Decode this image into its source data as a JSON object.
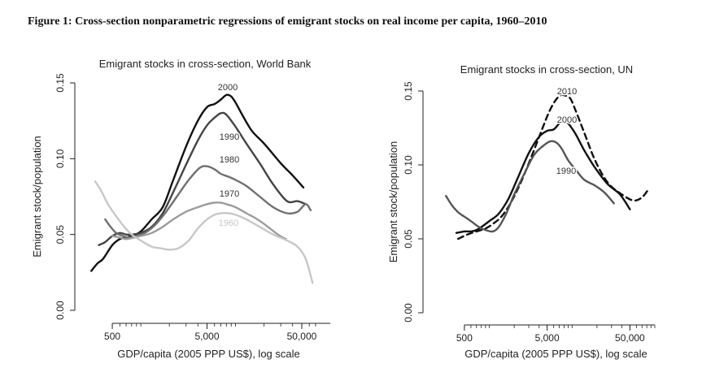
{
  "figure_title": "Figure 1: Cross-section nonparametric regressions of emigrant stocks on real income per capita, 1960–2010",
  "chart_data": [
    {
      "type": "line",
      "title": "Emigrant stocks in cross-section, World Bank",
      "xlabel": "GDP/capita (2005 PPP US$), log scale",
      "ylabel": "Emigrant stock/population",
      "x_scale": "log",
      "xlim": [
        260,
        70000
      ],
      "ylim": [
        0,
        0.15
      ],
      "x_ticks": [
        500,
        5000,
        50000
      ],
      "x_tick_labels": [
        "500",
        "5,000",
        "50,000"
      ],
      "y_ticks": [
        0,
        0.05,
        0.1,
        0.15
      ],
      "y_tick_labels": [
        "0.00",
        "0.05",
        "0.10",
        "0.15"
      ],
      "series": [
        {
          "name": "2000",
          "color": "#111111",
          "dash": "solid",
          "x": [
            300,
            350,
            400,
            500,
            600,
            700,
            800,
            1000,
            1300,
            1700,
            2200,
            3000,
            4000,
            5000,
            6000,
            7000,
            8000,
            9000,
            10000,
            12000,
            15000,
            20000,
            30000,
            40000,
            52000
          ],
          "y": [
            0.026,
            0.031,
            0.034,
            0.043,
            0.047,
            0.048,
            0.049,
            0.052,
            0.06,
            0.068,
            0.086,
            0.108,
            0.125,
            0.134,
            0.136,
            0.139,
            0.142,
            0.141,
            0.137,
            0.128,
            0.118,
            0.11,
            0.097,
            0.089,
            0.081
          ]
        },
        {
          "name": "1990",
          "color": "#444444",
          "dash": "solid",
          "x": [
            360,
            420,
            500,
            600,
            700,
            800,
            1000,
            1300,
            1700,
            2200,
            3000,
            4000,
            5000,
            6000,
            7000,
            8000,
            10000,
            13000,
            18000,
            25000,
            35000,
            45000,
            55000
          ],
          "y": [
            0.043,
            0.045,
            0.049,
            0.051,
            0.05,
            0.05,
            0.051,
            0.055,
            0.064,
            0.078,
            0.096,
            0.112,
            0.122,
            0.127,
            0.13,
            0.129,
            0.121,
            0.11,
            0.097,
            0.083,
            0.072,
            0.072,
            0.07
          ]
        },
        {
          "name": "1980",
          "color": "#707070",
          "dash": "solid",
          "x": [
            420,
            480,
            550,
            650,
            750,
            900,
            1100,
            1400,
            1800,
            2400,
            3200,
            4200,
            5000,
            6000,
            7000,
            8500,
            10000,
            13000,
            18000,
            25000,
            35000,
            45000,
            55000,
            62000
          ],
          "y": [
            0.06,
            0.055,
            0.051,
            0.049,
            0.048,
            0.049,
            0.051,
            0.056,
            0.064,
            0.075,
            0.086,
            0.094,
            0.095,
            0.093,
            0.09,
            0.088,
            0.086,
            0.082,
            0.075,
            0.068,
            0.064,
            0.065,
            0.07,
            0.066
          ]
        },
        {
          "name": "1970",
          "color": "#9c9c9c",
          "dash": "solid",
          "x": [
            500,
            600,
            700,
            850,
            1000,
            1300,
            1700,
            2200,
            3000,
            4000,
            5000,
            6000,
            7000,
            8000,
            10000,
            13000,
            17000,
            22000,
            28000,
            34000
          ],
          "y": [
            0.049,
            0.048,
            0.047,
            0.048,
            0.049,
            0.051,
            0.055,
            0.06,
            0.065,
            0.068,
            0.07,
            0.071,
            0.071,
            0.07,
            0.068,
            0.064,
            0.06,
            0.055,
            0.05,
            0.047
          ]
        },
        {
          "name": "1960",
          "color": "#c8c8c8",
          "dash": "solid",
          "x": [
            330,
            380,
            450,
            550,
            650,
            800,
            1000,
            1300,
            1600,
            2000,
            2500,
            3200,
            4000,
            5000,
            6000,
            7000,
            8500,
            10000,
            13000,
            18000,
            25000,
            35000,
            45000,
            55000,
            65000
          ],
          "y": [
            0.085,
            0.079,
            0.07,
            0.062,
            0.056,
            0.05,
            0.046,
            0.042,
            0.041,
            0.04,
            0.041,
            0.046,
            0.054,
            0.06,
            0.063,
            0.064,
            0.064,
            0.063,
            0.06,
            0.055,
            0.05,
            0.046,
            0.042,
            0.034,
            0.018
          ]
        }
      ]
    },
    {
      "type": "line",
      "title": "Emigrant stocks in cross-section, UN",
      "xlabel": "GDP/capita (2005 PPP US$), log scale",
      "ylabel": "Emigrant stock/population",
      "x_scale": "log",
      "xlim": [
        260,
        100000
      ],
      "ylim": [
        0,
        0.15
      ],
      "x_ticks": [
        500,
        5000,
        50000
      ],
      "x_tick_labels": [
        "500",
        "5,000",
        "50,000"
      ],
      "y_ticks": [
        0,
        0.05,
        0.1,
        0.15
      ],
      "y_tick_labels": [
        "0.00",
        "0.05",
        "0.10",
        "0.15"
      ],
      "series": [
        {
          "name": "2010",
          "color": "#111111",
          "dash": "dashed",
          "x": [
            420,
            550,
            700,
            900,
            1100,
            1400,
            1800,
            2400,
            3200,
            4200,
            5200,
            6200,
            7200,
            8200,
            9500,
            11000,
            14000,
            19000,
            27000,
            40000,
            55000,
            70000,
            85000
          ],
          "y": [
            0.05,
            0.053,
            0.055,
            0.057,
            0.06,
            0.065,
            0.074,
            0.088,
            0.105,
            0.122,
            0.135,
            0.143,
            0.147,
            0.147,
            0.145,
            0.137,
            0.122,
            0.103,
            0.088,
            0.08,
            0.076,
            0.078,
            0.084
          ]
        },
        {
          "name": "2000",
          "color": "#111111",
          "dash": "solid",
          "x": [
            400,
            500,
            600,
            700,
            850,
            1000,
            1300,
            1700,
            2200,
            3000,
            4000,
            5000,
            6000,
            7000,
            8000,
            9000,
            11000,
            14000,
            19000,
            27000,
            38000,
            50000
          ],
          "y": [
            0.054,
            0.055,
            0.055,
            0.056,
            0.059,
            0.062,
            0.067,
            0.077,
            0.091,
            0.108,
            0.119,
            0.123,
            0.124,
            0.128,
            0.13,
            0.128,
            0.121,
            0.11,
            0.098,
            0.087,
            0.08,
            0.07
          ]
        },
        {
          "name": "1990",
          "color": "#555555",
          "dash": "solid",
          "x": [
            300,
            350,
            420,
            500,
            600,
            750,
            900,
            1100,
            1300,
            1600,
            2000,
            2700,
            3500,
            4500,
            5500,
            6500,
            7500,
            9000,
            11000,
            14000,
            19000,
            25000,
            32000
          ],
          "y": [
            0.079,
            0.073,
            0.068,
            0.065,
            0.062,
            0.058,
            0.056,
            0.055,
            0.058,
            0.067,
            0.08,
            0.095,
            0.107,
            0.113,
            0.116,
            0.115,
            0.111,
            0.103,
            0.097,
            0.09,
            0.086,
            0.081,
            0.074
          ]
        }
      ]
    }
  ]
}
